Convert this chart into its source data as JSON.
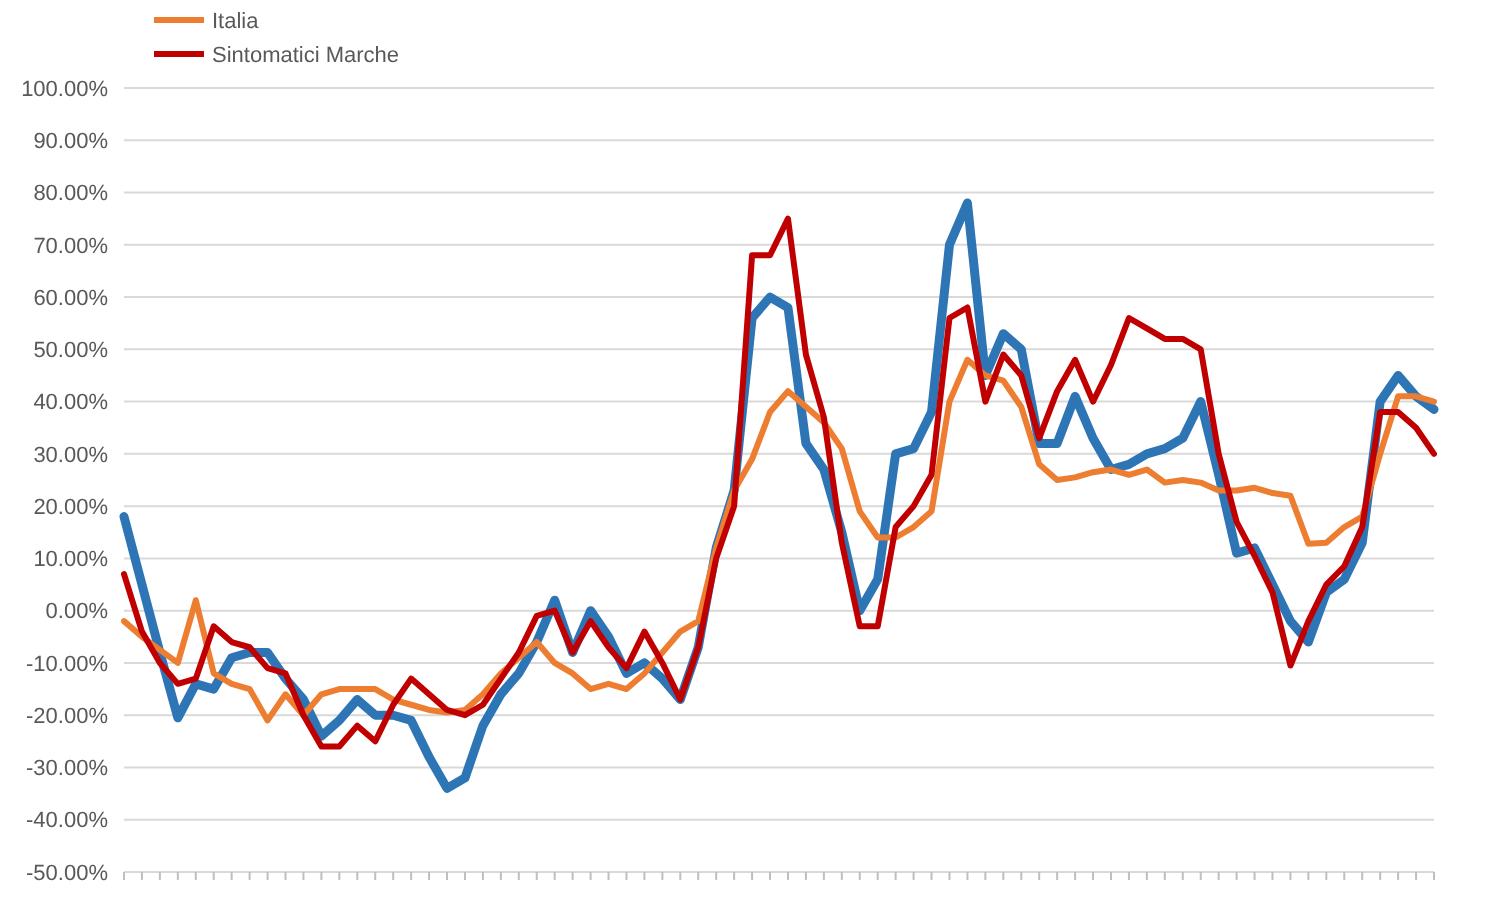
{
  "chart_data": {
    "type": "line",
    "categories": [
      null,
      null,
      null,
      null,
      null,
      null,
      null,
      null,
      null,
      null,
      null,
      null,
      null,
      null,
      null,
      null,
      null,
      null,
      null,
      null,
      null,
      null,
      null,
      null,
      null,
      null,
      null,
      null,
      null,
      null,
      null,
      null,
      null,
      null,
      null,
      null,
      null,
      null,
      null,
      null,
      null,
      null,
      null,
      null,
      null,
      null,
      null,
      null,
      null,
      null,
      null,
      null,
      null,
      null,
      null,
      null,
      null,
      null,
      null,
      null,
      null,
      null,
      null,
      null,
      null,
      null,
      null,
      null,
      null,
      null,
      null,
      null,
      null,
      null
    ],
    "series": [
      {
        "color": "#2e75b6",
        "values": [
          18,
          5,
          -8,
          -20.5,
          -14,
          -15,
          -9,
          -8,
          -8,
          -13,
          -17,
          -24,
          -21,
          -17,
          -20,
          -20,
          -21,
          -28,
          -34,
          -32,
          -22,
          -16,
          -12,
          -6,
          2,
          -8,
          0,
          -5,
          -12,
          -10,
          -13,
          -17,
          -7,
          12,
          23,
          56,
          60,
          58,
          32,
          27,
          15,
          0,
          6,
          30,
          31,
          38,
          70,
          78,
          45,
          53,
          50,
          32,
          32,
          41,
          33,
          27,
          28,
          30,
          31,
          33,
          40,
          26,
          11,
          12,
          5,
          -2,
          -6,
          3.5,
          6,
          13,
          40,
          45,
          41,
          38.5
        ]
      },
      {
        "name": "Italia",
        "color": "#ed7d31",
        "values": [
          -2,
          -5,
          -7.5,
          -10,
          2,
          -12,
          -14,
          -15,
          -21,
          -16,
          -20,
          -16,
          -15,
          -15,
          -15,
          -17,
          -18,
          -19,
          -19.5,
          -19,
          -16,
          -12,
          -9,
          -6,
          -10,
          -12,
          -15,
          -14,
          -15,
          -12,
          -8,
          -4,
          -2,
          12,
          23,
          29,
          38,
          42,
          39,
          36,
          31,
          19,
          14,
          14,
          16,
          19,
          40,
          48,
          45,
          44,
          39,
          28,
          25,
          25.5,
          26.5,
          27,
          26,
          27,
          24.5,
          25,
          24.5,
          23,
          23,
          23.5,
          22.5,
          22,
          12.8,
          13,
          16,
          18,
          30,
          41,
          41,
          40
        ]
      },
      {
        "name": "Sintomatici Marche",
        "color": "#c00000",
        "values": [
          7,
          -4,
          -10,
          -14,
          -13,
          -3,
          -6,
          -7,
          -11,
          -12,
          -20,
          -26,
          -26,
          -22,
          -25,
          -18,
          -13,
          -16,
          -19,
          -20,
          -18,
          -13,
          -8,
          -1,
          0,
          -8,
          -2,
          -7,
          -11,
          -4,
          -10,
          -17,
          -7,
          10,
          20,
          68,
          68,
          75,
          49,
          37,
          13,
          -3,
          -3,
          16,
          20,
          26,
          56,
          58,
          40,
          49,
          45,
          33,
          42,
          48,
          40,
          47,
          56,
          54,
          52,
          52,
          50,
          30,
          17,
          10.5,
          3.5,
          -10.5,
          -2,
          5,
          8.5,
          16,
          38,
          38,
          35,
          30
        ]
      }
    ],
    "ylim": [
      -50,
      100
    ],
    "yticks": [
      {
        "value": -50,
        "label": "-50.00%"
      },
      {
        "value": -40,
        "label": "-40.00%"
      },
      {
        "value": -30,
        "label": "-30.00%"
      },
      {
        "value": -20,
        "label": "-20.00%"
      },
      {
        "value": -10,
        "label": "-10.00%"
      },
      {
        "value": 0,
        "label": "0.00%"
      },
      {
        "value": 10,
        "label": "10.00%"
      },
      {
        "value": 20,
        "label": "20.00%"
      },
      {
        "value": 30,
        "label": "30.00%"
      },
      {
        "value": 40,
        "label": "40.00%"
      },
      {
        "value": 50,
        "label": "50.00%"
      },
      {
        "value": 60,
        "label": "60.00%"
      },
      {
        "value": 70,
        "label": "70.00%"
      },
      {
        "value": 80,
        "label": "80.00%"
      },
      {
        "value": 90,
        "label": "90.00%"
      },
      {
        "value": 100,
        "label": "100.00%"
      }
    ],
    "grid": "y",
    "legend": "top left",
    "marker": "none",
    "line_style": "solid"
  }
}
